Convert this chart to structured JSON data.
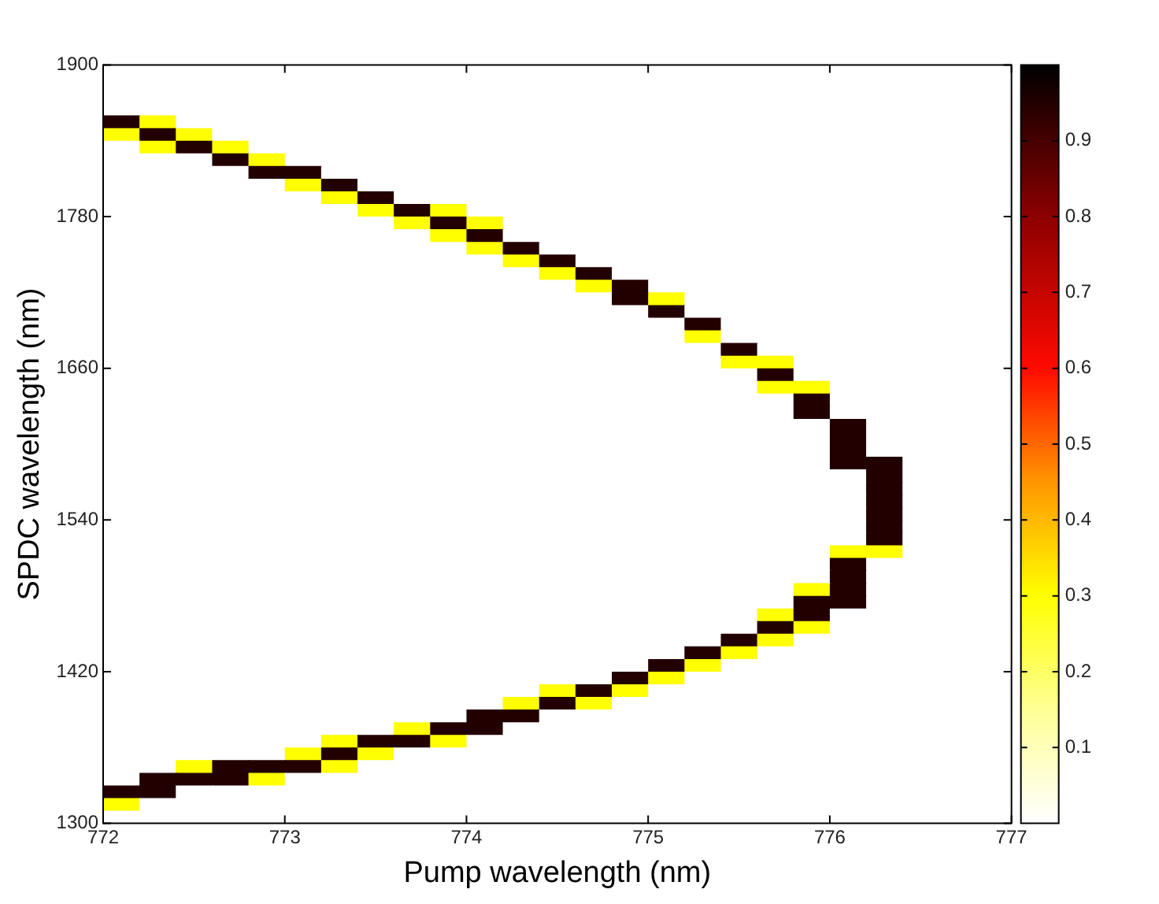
{
  "chart_data": {
    "type": "heatmap",
    "xlabel": "Pump wavelength (nm)",
    "ylabel": "SPDC wavelength (nm)",
    "xlim": [
      772,
      777
    ],
    "xticks": [
      772,
      773,
      774,
      775,
      776,
      777
    ],
    "ylim": [
      1300,
      1900
    ],
    "yticks": [
      1300,
      1420,
      1540,
      1660,
      1780,
      1900
    ],
    "clim": [
      0,
      1
    ],
    "cticks": [
      0.1,
      0.2,
      0.3,
      0.4,
      0.5,
      0.6,
      0.7,
      0.8,
      0.9
    ],
    "x": [
      772.1,
      772.3,
      772.5,
      772.7,
      772.9,
      773.1,
      773.3,
      773.5,
      773.7,
      773.9,
      774.1,
      774.3,
      774.5,
      774.7,
      774.9,
      775.1,
      775.3,
      775.5,
      775.7,
      775.9,
      776.1,
      776.3,
      776.5,
      776.7,
      776.9
    ],
    "y": [
      1895,
      1885,
      1875,
      1865,
      1855,
      1845,
      1835,
      1825,
      1815,
      1805,
      1795,
      1785,
      1775,
      1765,
      1755,
      1745,
      1735,
      1725,
      1715,
      1705,
      1695,
      1685,
      1675,
      1665,
      1655,
      1645,
      1635,
      1625,
      1615,
      1605,
      1595,
      1585,
      1575,
      1565,
      1555,
      1545,
      1535,
      1525,
      1515,
      1505,
      1495,
      1485,
      1475,
      1465,
      1455,
      1445,
      1435,
      1425,
      1415,
      1405,
      1395,
      1385,
      1375,
      1365,
      1355,
      1345,
      1335,
      1325,
      1315,
      1305
    ],
    "cells": [
      [
        0,
        0,
        0,
        0,
        0,
        0,
        0,
        0,
        0,
        0,
        0,
        0,
        0,
        0,
        0,
        0,
        0,
        0,
        0,
        0,
        0,
        0,
        0,
        0,
        0
      ],
      [
        0,
        0,
        0,
        0,
        0,
        0,
        0,
        0,
        0,
        0,
        0,
        0,
        0,
        0,
        0,
        0,
        0,
        0,
        0,
        0,
        0,
        0,
        0,
        0,
        0
      ],
      [
        0,
        0,
        0,
        0,
        0,
        0,
        0,
        0,
        0,
        0,
        0,
        0,
        0,
        0,
        0,
        0,
        0,
        0,
        0,
        0,
        0,
        0,
        0,
        0,
        0
      ],
      [
        0,
        0,
        0,
        0,
        0,
        0,
        0,
        0,
        0,
        0,
        0,
        0,
        0,
        0,
        0,
        0,
        0,
        0,
        0,
        0,
        0,
        0,
        0,
        0,
        0
      ],
      [
        0.95,
        0.3,
        0,
        0,
        0,
        0,
        0,
        0,
        0,
        0,
        0,
        0,
        0,
        0,
        0,
        0,
        0,
        0,
        0,
        0,
        0,
        0,
        0,
        0,
        0
      ],
      [
        0.3,
        0.95,
        0.3,
        0,
        0,
        0,
        0,
        0,
        0,
        0,
        0,
        0,
        0,
        0,
        0,
        0,
        0,
        0,
        0,
        0,
        0,
        0,
        0,
        0,
        0
      ],
      [
        0,
        0.3,
        0.95,
        0.3,
        0,
        0,
        0,
        0,
        0,
        0,
        0,
        0,
        0,
        0,
        0,
        0,
        0,
        0,
        0,
        0,
        0,
        0,
        0,
        0,
        0
      ],
      [
        0,
        0,
        0,
        0.95,
        0.3,
        0,
        0,
        0,
        0,
        0,
        0,
        0,
        0,
        0,
        0,
        0,
        0,
        0,
        0,
        0,
        0,
        0,
        0,
        0,
        0
      ],
      [
        0,
        0,
        0,
        0,
        0.95,
        0.95,
        0,
        0,
        0,
        0,
        0,
        0,
        0,
        0,
        0,
        0,
        0,
        0,
        0,
        0,
        0,
        0,
        0,
        0,
        0
      ],
      [
        0,
        0,
        0,
        0,
        0,
        0.3,
        0.95,
        0,
        0,
        0,
        0,
        0,
        0,
        0,
        0,
        0,
        0,
        0,
        0,
        0,
        0,
        0,
        0,
        0,
        0
      ],
      [
        0,
        0,
        0,
        0,
        0,
        0,
        0.3,
        0.95,
        0,
        0,
        0,
        0,
        0,
        0,
        0,
        0,
        0,
        0,
        0,
        0,
        0,
        0,
        0,
        0,
        0
      ],
      [
        0,
        0,
        0,
        0,
        0,
        0,
        0,
        0.3,
        0.95,
        0.3,
        0,
        0,
        0,
        0,
        0,
        0,
        0,
        0,
        0,
        0,
        0,
        0,
        0,
        0,
        0
      ],
      [
        0,
        0,
        0,
        0,
        0,
        0,
        0,
        0,
        0.3,
        0.95,
        0.3,
        0,
        0,
        0,
        0,
        0,
        0,
        0,
        0,
        0,
        0,
        0,
        0,
        0,
        0
      ],
      [
        0,
        0,
        0,
        0,
        0,
        0,
        0,
        0,
        0,
        0.3,
        0.95,
        0,
        0,
        0,
        0,
        0,
        0,
        0,
        0,
        0,
        0,
        0,
        0,
        0,
        0
      ],
      [
        0,
        0,
        0,
        0,
        0,
        0,
        0,
        0,
        0,
        0,
        0.3,
        0.95,
        0,
        0,
        0,
        0,
        0,
        0,
        0,
        0,
        0,
        0,
        0,
        0,
        0
      ],
      [
        0,
        0,
        0,
        0,
        0,
        0,
        0,
        0,
        0,
        0,
        0,
        0.3,
        0.95,
        0,
        0,
        0,
        0,
        0,
        0,
        0,
        0,
        0,
        0,
        0,
        0
      ],
      [
        0,
        0,
        0,
        0,
        0,
        0,
        0,
        0,
        0,
        0,
        0,
        0,
        0.3,
        0.95,
        0,
        0,
        0,
        0,
        0,
        0,
        0,
        0,
        0,
        0,
        0
      ],
      [
        0,
        0,
        0,
        0,
        0,
        0,
        0,
        0,
        0,
        0,
        0,
        0,
        0,
        0.3,
        0.95,
        0,
        0,
        0,
        0,
        0,
        0,
        0,
        0,
        0,
        0
      ],
      [
        0,
        0,
        0,
        0,
        0,
        0,
        0,
        0,
        0,
        0,
        0,
        0,
        0,
        0,
        0.95,
        0.3,
        0,
        0,
        0,
        0,
        0,
        0,
        0,
        0,
        0
      ],
      [
        0,
        0,
        0,
        0,
        0,
        0,
        0,
        0,
        0,
        0,
        0,
        0,
        0,
        0,
        0,
        0.95,
        0,
        0,
        0,
        0,
        0,
        0,
        0,
        0,
        0
      ],
      [
        0,
        0,
        0,
        0,
        0,
        0,
        0,
        0,
        0,
        0,
        0,
        0,
        0,
        0,
        0,
        0,
        0.95,
        0,
        0,
        0,
        0,
        0,
        0,
        0,
        0
      ],
      [
        0,
        0,
        0,
        0,
        0,
        0,
        0,
        0,
        0,
        0,
        0,
        0,
        0,
        0,
        0,
        0,
        0.3,
        0,
        0,
        0,
        0,
        0,
        0,
        0,
        0
      ],
      [
        0,
        0,
        0,
        0,
        0,
        0,
        0,
        0,
        0,
        0,
        0,
        0,
        0,
        0,
        0,
        0,
        0,
        0.95,
        0,
        0,
        0,
        0,
        0,
        0,
        0
      ],
      [
        0,
        0,
        0,
        0,
        0,
        0,
        0,
        0,
        0,
        0,
        0,
        0,
        0,
        0,
        0,
        0,
        0,
        0.3,
        0.3,
        0,
        0,
        0,
        0,
        0,
        0
      ],
      [
        0,
        0,
        0,
        0,
        0,
        0,
        0,
        0,
        0,
        0,
        0,
        0,
        0,
        0,
        0,
        0,
        0,
        0,
        0.95,
        0,
        0,
        0,
        0,
        0,
        0
      ],
      [
        0,
        0,
        0,
        0,
        0,
        0,
        0,
        0,
        0,
        0,
        0,
        0,
        0,
        0,
        0,
        0,
        0,
        0,
        0.3,
        0.3,
        0,
        0,
        0,
        0,
        0
      ],
      [
        0,
        0,
        0,
        0,
        0,
        0,
        0,
        0,
        0,
        0,
        0,
        0,
        0,
        0,
        0,
        0,
        0,
        0,
        0,
        0.95,
        0,
        0,
        0,
        0,
        0
      ],
      [
        0,
        0,
        0,
        0,
        0,
        0,
        0,
        0,
        0,
        0,
        0,
        0,
        0,
        0,
        0,
        0,
        0,
        0,
        0,
        0.95,
        0,
        0,
        0,
        0,
        0
      ],
      [
        0,
        0,
        0,
        0,
        0,
        0,
        0,
        0,
        0,
        0,
        0,
        0,
        0,
        0,
        0,
        0,
        0,
        0,
        0,
        0,
        0.95,
        0,
        0,
        0,
        0
      ],
      [
        0,
        0,
        0,
        0,
        0,
        0,
        0,
        0,
        0,
        0,
        0,
        0,
        0,
        0,
        0,
        0,
        0,
        0,
        0,
        0,
        0.95,
        0,
        0,
        0,
        0
      ],
      [
        0,
        0,
        0,
        0,
        0,
        0,
        0,
        0,
        0,
        0,
        0,
        0,
        0,
        0,
        0,
        0,
        0,
        0,
        0,
        0,
        0.95,
        0,
        0,
        0,
        0
      ],
      [
        0,
        0,
        0,
        0,
        0,
        0,
        0,
        0,
        0,
        0,
        0,
        0,
        0,
        0,
        0,
        0,
        0,
        0,
        0,
        0,
        0.95,
        0.95,
        0,
        0,
        0
      ],
      [
        0,
        0,
        0,
        0,
        0,
        0,
        0,
        0,
        0,
        0,
        0,
        0,
        0,
        0,
        0,
        0,
        0,
        0,
        0,
        0,
        0,
        0.95,
        0,
        0,
        0
      ],
      [
        0,
        0,
        0,
        0,
        0,
        0,
        0,
        0,
        0,
        0,
        0,
        0,
        0,
        0,
        0,
        0,
        0,
        0,
        0,
        0,
        0,
        0.95,
        0,
        0,
        0
      ],
      [
        0,
        0,
        0,
        0,
        0,
        0,
        0,
        0,
        0,
        0,
        0,
        0,
        0,
        0,
        0,
        0,
        0,
        0,
        0,
        0,
        0,
        0.95,
        0,
        0,
        0
      ],
      [
        0,
        0,
        0,
        0,
        0,
        0,
        0,
        0,
        0,
        0,
        0,
        0,
        0,
        0,
        0,
        0,
        0,
        0,
        0,
        0,
        0,
        0.95,
        0,
        0,
        0
      ],
      [
        0,
        0,
        0,
        0,
        0,
        0,
        0,
        0,
        0,
        0,
        0,
        0,
        0,
        0,
        0,
        0,
        0,
        0,
        0,
        0,
        0,
        0.95,
        0,
        0,
        0
      ],
      [
        0,
        0,
        0,
        0,
        0,
        0,
        0,
        0,
        0,
        0,
        0,
        0,
        0,
        0,
        0,
        0,
        0,
        0,
        0,
        0,
        0,
        0.95,
        0,
        0,
        0
      ],
      [
        0,
        0,
        0,
        0,
        0,
        0,
        0,
        0,
        0,
        0,
        0,
        0,
        0,
        0,
        0,
        0,
        0,
        0,
        0,
        0,
        0.3,
        0.3,
        0,
        0,
        0
      ],
      [
        0,
        0,
        0,
        0,
        0,
        0,
        0,
        0,
        0,
        0,
        0,
        0,
        0,
        0,
        0,
        0,
        0,
        0,
        0,
        0,
        0.95,
        0,
        0,
        0,
        0
      ],
      [
        0,
        0,
        0,
        0,
        0,
        0,
        0,
        0,
        0,
        0,
        0,
        0,
        0,
        0,
        0,
        0,
        0,
        0,
        0,
        0,
        0.95,
        0,
        0,
        0,
        0
      ],
      [
        0,
        0,
        0,
        0,
        0,
        0,
        0,
        0,
        0,
        0,
        0,
        0,
        0,
        0,
        0,
        0,
        0,
        0,
        0,
        0.3,
        0.95,
        0,
        0,
        0,
        0
      ],
      [
        0,
        0,
        0,
        0,
        0,
        0,
        0,
        0,
        0,
        0,
        0,
        0,
        0,
        0,
        0,
        0,
        0,
        0,
        0,
        0.95,
        0.95,
        0,
        0,
        0,
        0
      ],
      [
        0,
        0,
        0,
        0,
        0,
        0,
        0,
        0,
        0,
        0,
        0,
        0,
        0,
        0,
        0,
        0,
        0,
        0,
        0.3,
        0.95,
        0,
        0,
        0,
        0,
        0
      ],
      [
        0,
        0,
        0,
        0,
        0,
        0,
        0,
        0,
        0,
        0,
        0,
        0,
        0,
        0,
        0,
        0,
        0,
        0,
        0.95,
        0.3,
        0,
        0,
        0,
        0,
        0
      ],
      [
        0,
        0,
        0,
        0,
        0,
        0,
        0,
        0,
        0,
        0,
        0,
        0,
        0,
        0,
        0,
        0,
        0,
        0.95,
        0.3,
        0,
        0,
        0,
        0,
        0,
        0
      ],
      [
        0,
        0,
        0,
        0,
        0,
        0,
        0,
        0,
        0,
        0,
        0,
        0,
        0,
        0,
        0,
        0,
        0.95,
        0.3,
        0,
        0,
        0,
        0,
        0,
        0,
        0
      ],
      [
        0,
        0,
        0,
        0,
        0,
        0,
        0,
        0,
        0,
        0,
        0,
        0,
        0,
        0,
        0,
        0.95,
        0.3,
        0,
        0,
        0,
        0,
        0,
        0,
        0,
        0
      ],
      [
        0,
        0,
        0,
        0,
        0,
        0,
        0,
        0,
        0,
        0,
        0,
        0,
        0,
        0,
        0.95,
        0.3,
        0,
        0,
        0,
        0,
        0,
        0,
        0,
        0,
        0
      ],
      [
        0,
        0,
        0,
        0,
        0,
        0,
        0,
        0,
        0,
        0,
        0,
        0,
        0.3,
        0.95,
        0.3,
        0,
        0,
        0,
        0,
        0,
        0,
        0,
        0,
        0,
        0
      ],
      [
        0,
        0,
        0,
        0,
        0,
        0,
        0,
        0,
        0,
        0,
        0,
        0.3,
        0.95,
        0.3,
        0,
        0,
        0,
        0,
        0,
        0,
        0,
        0,
        0,
        0,
        0
      ],
      [
        0,
        0,
        0,
        0,
        0,
        0,
        0,
        0,
        0,
        0,
        0.95,
        0.95,
        0,
        0,
        0,
        0,
        0,
        0,
        0,
        0,
        0,
        0,
        0,
        0,
        0
      ],
      [
        0,
        0,
        0,
        0,
        0,
        0,
        0,
        0,
        0.3,
        0.95,
        0.95,
        0,
        0,
        0,
        0,
        0,
        0,
        0,
        0,
        0,
        0,
        0,
        0,
        0,
        0
      ],
      [
        0,
        0,
        0,
        0,
        0,
        0,
        0.3,
        0.95,
        0.95,
        0.3,
        0,
        0,
        0,
        0,
        0,
        0,
        0,
        0,
        0,
        0,
        0,
        0,
        0,
        0,
        0
      ],
      [
        0,
        0,
        0,
        0,
        0,
        0.3,
        0.95,
        0.3,
        0,
        0,
        0,
        0,
        0,
        0,
        0,
        0,
        0,
        0,
        0,
        0,
        0,
        0,
        0,
        0,
        0
      ],
      [
        0,
        0,
        0.3,
        0.95,
        0.95,
        0.95,
        0.3,
        0,
        0,
        0,
        0,
        0,
        0,
        0,
        0,
        0,
        0,
        0,
        0,
        0,
        0,
        0,
        0,
        0,
        0
      ],
      [
        0,
        0.95,
        0.95,
        0.95,
        0.3,
        0,
        0,
        0,
        0,
        0,
        0,
        0,
        0,
        0,
        0,
        0,
        0,
        0,
        0,
        0,
        0,
        0,
        0,
        0,
        0
      ],
      [
        0.95,
        0.95,
        0,
        0,
        0,
        0,
        0,
        0,
        0,
        0,
        0,
        0,
        0,
        0,
        0,
        0,
        0,
        0,
        0,
        0,
        0,
        0,
        0,
        0,
        0
      ],
      [
        0.3,
        0,
        0,
        0,
        0,
        0,
        0,
        0,
        0,
        0,
        0,
        0,
        0,
        0,
        0,
        0,
        0,
        0,
        0,
        0,
        0,
        0,
        0,
        0,
        0
      ],
      [
        0,
        0,
        0,
        0,
        0,
        0,
        0,
        0,
        0,
        0,
        0,
        0,
        0,
        0,
        0,
        0,
        0,
        0,
        0,
        0,
        0,
        0,
        0,
        0,
        0
      ]
    ]
  }
}
